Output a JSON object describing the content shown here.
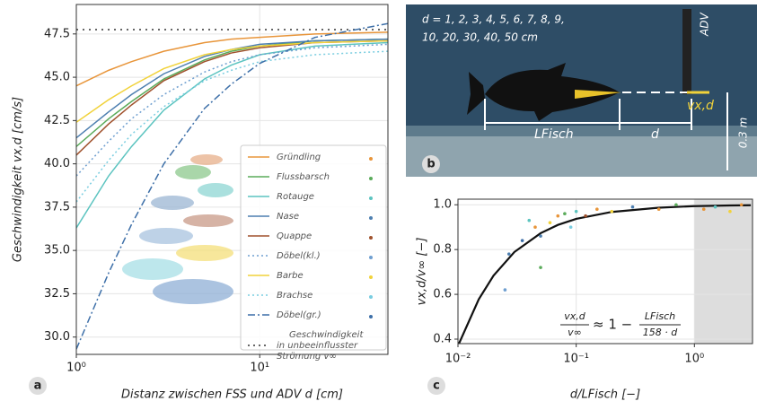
{
  "panels": {
    "a": "a",
    "b": "b",
    "c": "c"
  },
  "chart_data": [
    {
      "type": "line",
      "xlabel": "Distanz zwischen FSS und ADV d [cm]",
      "ylabel": "Geschwindigkeit vx,d [cm/s]",
      "log_x": true,
      "grid": true,
      "xlim": [
        1,
        50
      ],
      "ylim": [
        29,
        49.2
      ],
      "xticks": [
        {
          "value": 1,
          "label": "10⁰"
        },
        {
          "value": 10,
          "label": "10¹"
        }
      ],
      "yticks": [
        {
          "value": 30,
          "label": "30.0"
        },
        32.5,
        {
          "value": 35,
          "label": "35.0"
        },
        37.5,
        {
          "value": 40,
          "label": "40.0"
        },
        42.5,
        {
          "value": 45,
          "label": "45.0"
        },
        47.5
      ],
      "x": [
        1,
        1.5,
        2,
        3,
        5,
        7,
        10,
        20,
        50
      ],
      "series": [
        {
          "name": "Gründling",
          "color": "#e8953a",
          "linestyle": "solid",
          "values": [
            44.5,
            45.4,
            45.9,
            46.5,
            47.0,
            47.2,
            47.3,
            47.5,
            47.6
          ]
        },
        {
          "name": "Flussbarsch",
          "color": "#5aab5a",
          "linestyle": "solid",
          "values": [
            41.0,
            42.6,
            43.6,
            44.9,
            46.0,
            46.5,
            46.8,
            47.1,
            47.2
          ]
        },
        {
          "name": "Rotauge",
          "color": "#5cc4c0",
          "linestyle": "solid",
          "values": [
            36.3,
            39.3,
            41.0,
            43.1,
            44.9,
            45.7,
            46.3,
            46.8,
            47.0
          ]
        },
        {
          "name": "Nase",
          "color": "#4d7fb0",
          "linestyle": "solid",
          "values": [
            41.5,
            43.0,
            44.0,
            45.2,
            46.2,
            46.6,
            46.9,
            47.1,
            47.2
          ]
        },
        {
          "name": "Quappe",
          "color": "#a0522d",
          "linestyle": "solid",
          "values": [
            40.5,
            42.3,
            43.4,
            44.8,
            45.9,
            46.4,
            46.7,
            47.0,
            47.1
          ]
        },
        {
          "name": "Döbel(kl.)",
          "color": "#6f9fd0",
          "linestyle": "dotted",
          "values": [
            39.3,
            41.3,
            42.6,
            44.0,
            45.3,
            45.9,
            46.3,
            46.7,
            46.9
          ]
        },
        {
          "name": "Barbe",
          "color": "#f1d23a",
          "linestyle": "solid",
          "values": [
            42.4,
            43.7,
            44.5,
            45.5,
            46.3,
            46.6,
            46.8,
            47.0,
            47.1
          ]
        },
        {
          "name": "Brachse",
          "color": "#79cde0",
          "linestyle": "dotted",
          "values": [
            37.8,
            40.2,
            41.7,
            43.3,
            44.8,
            45.4,
            45.9,
            46.3,
            46.5
          ]
        },
        {
          "name": "Döbel(gr.)",
          "color": "#3d6fa8",
          "linestyle": "dashdot",
          "values": [
            29.3,
            33.7,
            36.5,
            40.0,
            43.2,
            44.6,
            45.8,
            47.3,
            48.1
          ]
        }
      ],
      "reference": {
        "name": [
          "Geschwindigkeit",
          "in unbeeinflusster",
          "Strömung v∞"
        ],
        "value": 47.75,
        "color": "#666666"
      }
    },
    {
      "type": "photo",
      "labels": {
        "d_list_1": "d = 1, 2, 3, 4, 5, 6, 7, 8, 9,",
        "d_list_2": "10, 20, 30, 40, 50 cm",
        "adv": "ADV",
        "v": "vx,d",
        "l_fisch": "LFisch",
        "d": "d",
        "height": "0.3 m"
      }
    },
    {
      "type": "line",
      "xlabel": "d/LFisch [−]",
      "ylabel": "vx,d/v∞ [−]",
      "log_x": true,
      "grid": true,
      "xlim": [
        0.01,
        3.1
      ],
      "ylim": [
        0.38,
        1.025
      ],
      "xticks": [
        {
          "value": 0.01,
          "label": "10⁻²"
        },
        {
          "value": 0.1,
          "label": "10⁻¹"
        },
        {
          "value": 1,
          "label": "10⁰"
        }
      ],
      "yticks": [
        0.4,
        0.6,
        0.8,
        {
          "value": 1,
          "label": "1.0"
        }
      ],
      "shade": [
        1,
        3.1
      ],
      "x": [
        0.01,
        0.015,
        0.02,
        0.03,
        0.05,
        0.07,
        0.1,
        0.2,
        0.5,
        1,
        2,
        3
      ],
      "series": [
        {
          "color": "#111111",
          "linestyle": "solid",
          "values": [
            0.37,
            0.578,
            0.684,
            0.789,
            0.873,
            0.91,
            0.937,
            0.968,
            0.987,
            0.994,
            0.997,
            0.998
          ]
        }
      ],
      "scatter": {
        "x": [
          0.025,
          0.027,
          0.04,
          0.045,
          0.05,
          0.05,
          0.06,
          0.07,
          0.08,
          0.1,
          0.12,
          0.15,
          0.2,
          0.3,
          0.5,
          0.7,
          1.2,
          1.5,
          2,
          2.5,
          0.09,
          0.035
        ],
        "values": [
          0.62,
          0.78,
          0.93,
          0.9,
          0.72,
          0.86,
          0.92,
          0.95,
          0.96,
          0.97,
          0.95,
          0.98,
          0.97,
          0.99,
          0.98,
          1.0,
          0.98,
          0.99,
          0.97,
          1.0,
          0.9,
          0.84
        ],
        "colors": [
          "#6f9fd0",
          "#4d7fb0",
          "#5cc4c0",
          "#e8953a",
          "#5aab5a",
          "#4d7fb0",
          "#f1d23a",
          "#e8953a",
          "#5aab5a",
          "#5cc4c0",
          "#a0522d",
          "#e8953a",
          "#f1d23a",
          "#4d7fb0",
          "#e8953a",
          "#5aab5a",
          "#e8953a",
          "#5cc4c0",
          "#f1d23a",
          "#e8953a",
          "#79cde0",
          "#3d6fa8"
        ]
      },
      "formula": {
        "lhs_num": "vx,d",
        "lhs_den": "v∞",
        "approx": "≈ 1 −",
        "rhs_num": "LFisch",
        "rhs_den": "158 · d"
      }
    }
  ]
}
